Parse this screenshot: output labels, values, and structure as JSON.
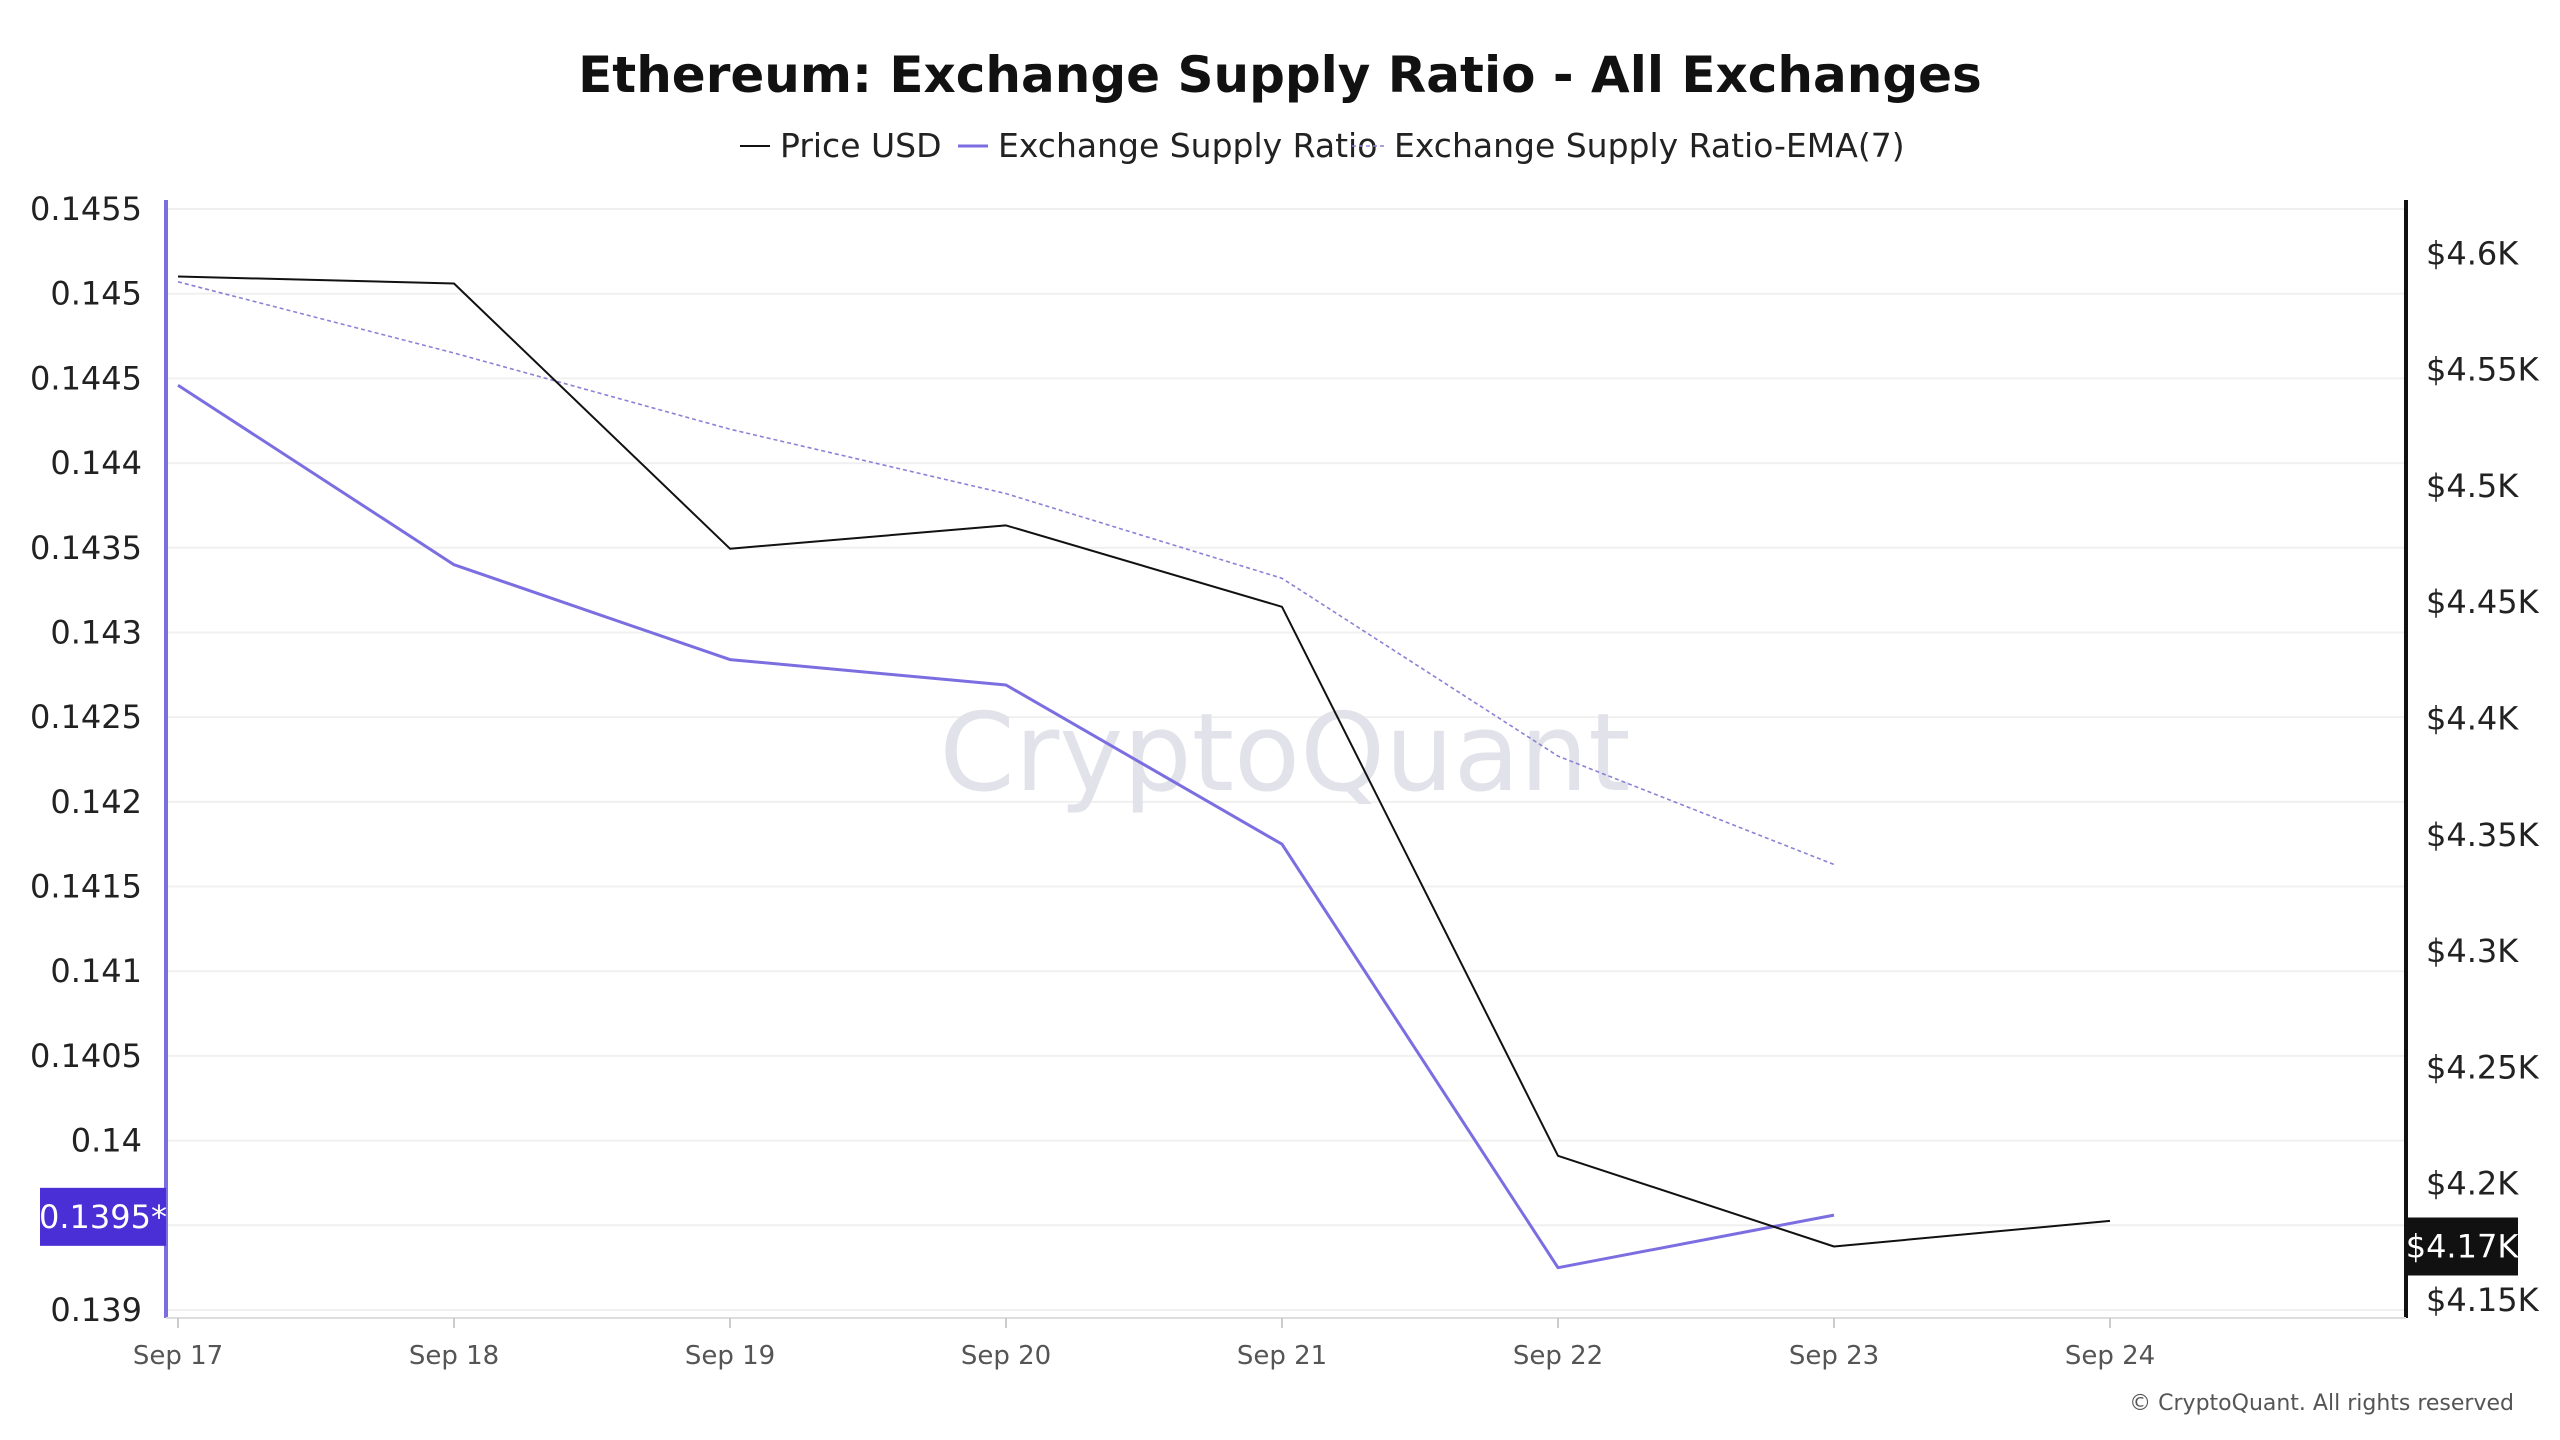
{
  "chart_data": {
    "type": "line",
    "title": "Ethereum: Exchange Supply Ratio - All Exchanges",
    "legend_position": "top-center",
    "grid": true,
    "categories": [
      "Sep 17",
      "Sep 18",
      "Sep 19",
      "Sep 20",
      "Sep 21",
      "Sep 22",
      "Sep 23",
      "Sep 24"
    ],
    "series": [
      {
        "name": "Price USD",
        "axis": "right",
        "color": "#111111",
        "style": "solid",
        "values": [
          4590,
          4587,
          4473,
          4483,
          4448,
          4212,
          4173,
          4184
        ]
      },
      {
        "name": "Exchange Supply Ratio",
        "axis": "left",
        "color": "#7b6ee0",
        "style": "solid",
        "values": [
          0.14446,
          0.1434,
          0.14284,
          0.14269,
          0.14175,
          0.13925,
          0.13956,
          null
        ]
      },
      {
        "name": "Exchange Supply Ratio-EMA(7)",
        "axis": "left",
        "color": "#8a82d6",
        "style": "dashed",
        "values": [
          0.14507,
          0.14465,
          0.1442,
          0.14382,
          0.14332,
          0.14227,
          0.14163,
          null
        ]
      }
    ],
    "y_left": {
      "min": 0.139,
      "max": 0.1455,
      "ticks": [
        "0.139",
        "0.1395",
        "0.14",
        "0.1405",
        "0.141",
        "0.1415",
        "0.142",
        "0.1425",
        "0.143",
        "0.1435",
        "0.144",
        "0.1445",
        "0.145",
        "0.1455"
      ],
      "visible_ticks": [
        "0.139",
        "0.14",
        "0.1405",
        "0.141",
        "0.1415",
        "0.142",
        "0.1425",
        "0.143",
        "0.1435",
        "0.144",
        "0.1445",
        "0.145",
        "0.1455"
      ],
      "current_label": "0.1395*",
      "current_value": 0.13955,
      "color": "#7b6ee0"
    },
    "y_right": {
      "min": 4150,
      "max": 4610,
      "tick_values": [
        4150,
        4200,
        4250,
        4300,
        4350,
        4400,
        4450,
        4500,
        4550,
        4600
      ],
      "tick_labels": [
        "$4.15K",
        "$4.2K",
        "$4.25K",
        "$4.3K",
        "$4.35K",
        "$4.4K",
        "$4.45K",
        "$4.5K",
        "$4.55K",
        "$4.6K"
      ],
      "current_label": "$4.17K",
      "current_value": 4173,
      "color": "#111111"
    },
    "watermark": "CryptoQuant",
    "copyright": "© CryptoQuant. All rights reserved"
  }
}
